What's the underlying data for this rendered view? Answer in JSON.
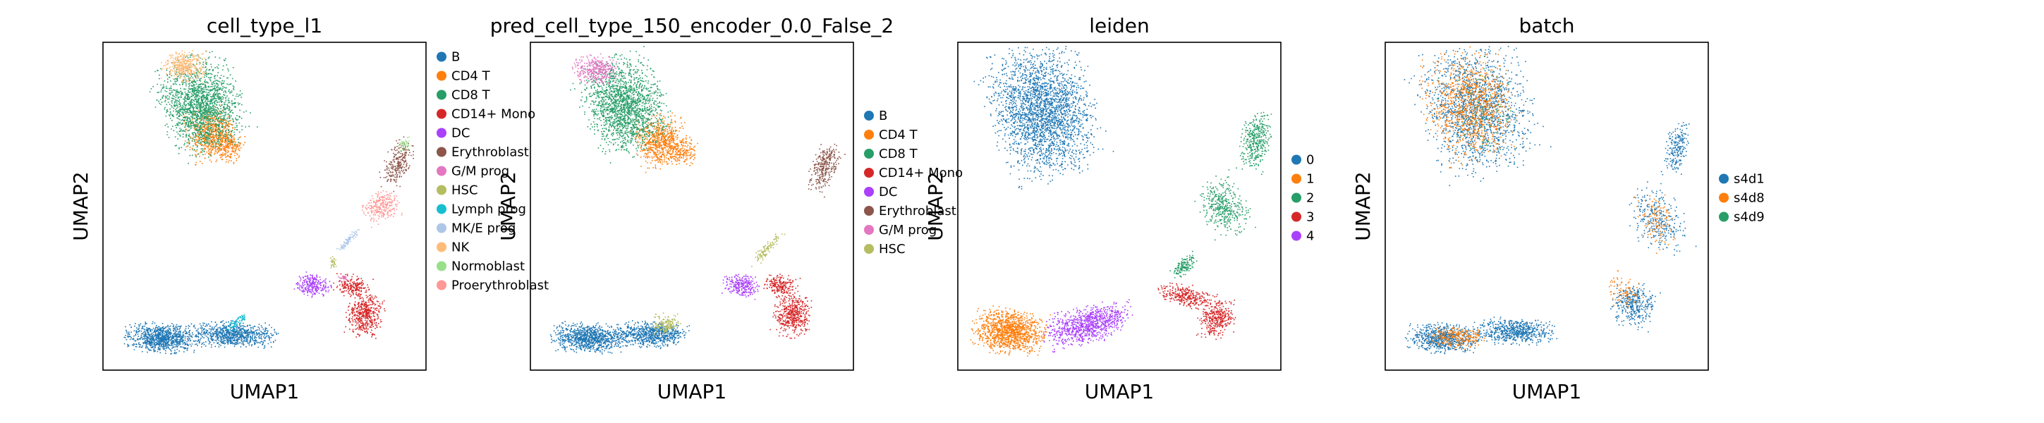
{
  "chart_data": [
    {
      "type": "scatter",
      "title": "cell_type_l1",
      "xlabel": "UMAP1",
      "ylabel": "UMAP2",
      "legend_position": "right",
      "series": [
        {
          "name": "B",
          "color": "#1f77b4",
          "regions": [
            [
              0.2,
              0.12,
              0.42,
              0.12,
              0.7,
              0.03
            ],
            [
              0.6,
              0.15,
              0.18,
              0.1,
              2.0,
              0.02
            ],
            [
              0.62,
              0.18,
              0.07,
              0.08,
              1.2,
              0.0
            ]
          ]
        },
        {
          "name": "CD4 T",
          "color": "#ff7f0e",
          "regions": [
            [
              1.5,
              0.1,
              0.25,
              0.25,
              1.0,
              -0.2
            ],
            [
              2.35,
              0.1,
              0.28,
              0.12,
              1.4,
              0.0
            ]
          ]
        },
        {
          "name": "CD8 T",
          "color": "#279e68",
          "regions": [
            [
              1.3,
              0.25,
              0.3,
              0.32,
              1.0,
              -0.3
            ]
          ]
        },
        {
          "name": "CD14+ Mono",
          "color": "#d62728",
          "regions": [
            [
              6.35,
              0.35,
              0.85,
              0.1,
              1.2,
              0.0
            ],
            [
              0.4,
              0.01,
              0.45,
              0.09,
              2.0,
              0.0
            ]
          ]
        },
        {
          "name": "DC",
          "color": "#aa40fc",
          "regions": [
            [
              5.9,
              0.37,
              0.65,
              0.14,
              0.8,
              0.2
            ]
          ]
        },
        {
          "name": "Erythroblast",
          "color": "#8c564b",
          "regions": [
            [
              4.7,
              0.6,
              0.25,
              0.12,
              1.2,
              0.8
            ]
          ]
        },
        {
          "name": "G/M prog",
          "color": "#e377c2",
          "regions": [
            [
              0.2,
              1.0,
              0.1,
              0.1,
              0.1,
              0.0
            ]
          ]
        },
        {
          "name": "HSC",
          "color": "#b5bd61",
          "regions": [
            [
              1.0,
              6.0,
              0.06,
              0.15,
              0.15,
              0.0
            ]
          ]
        },
        {
          "name": "Lymph prog",
          "color": "#17becf",
          "regions": [
            [
              1.5,
              2.5,
              0.05,
              0.12,
              0.3,
              0.0
            ]
          ]
        },
        {
          "name": "MK/E prog",
          "color": "#aec7e8",
          "regions": [
            [
              0.35,
              1.5,
              0.1,
              0.05,
              0.4,
              1.0
            ]
          ]
        },
        {
          "name": "NK",
          "color": "#ffbb78",
          "regions": [
            [
              1.8,
              0.5,
              0.2,
              0.12,
              0.6,
              0.0
            ]
          ]
        },
        {
          "name": "Normoblast",
          "color": "#98df8a",
          "regions": [
            [
              1.0,
              5.0,
              0.15,
              0.15,
              0.1,
              0.0
            ]
          ]
        },
        {
          "name": "Proerythroblast",
          "color": "#ff9896",
          "regions": [
            [
              0.5,
              3.0,
              0.28,
              0.55,
              1.0,
              0.0
            ]
          ]
        }
      ]
    },
    {
      "type": "scatter",
      "title": "pred_cell_type_150_encoder_0.0_False_2",
      "xlabel": "UMAP1",
      "ylabel": "UMAP2",
      "legend_position": "right",
      "series": [
        {
          "name": "B",
          "color": "#1f77b4",
          "regions": [
            [
              0.2,
              0.12,
              0.42,
              0.12,
              0.7,
              0.03
            ],
            [
              0.6,
              0.15,
              0.18,
              0.1,
              2.0,
              0.02
            ]
          ]
        },
        {
          "name": "CD4 T",
          "color": "#ff7f0e",
          "regions": [
            [
              1.5,
              0.1,
              0.25,
              0.25,
              1.0,
              -0.2
            ],
            [
              2.35,
              0.1,
              0.28,
              0.12,
              1.4,
              0.0
            ]
          ]
        },
        {
          "name": "CD8 T",
          "color": "#279e68",
          "regions": [
            [
              1.3,
              0.25,
              0.3,
              0.32,
              1.0,
              -0.3
            ]
          ]
        },
        {
          "name": "CD14+ Mono",
          "color": "#d62728",
          "regions": [
            [
              6.35,
              0.35,
              0.85,
              0.1,
              1.2,
              0.0
            ],
            [
              0.4,
              0.01,
              0.45,
              0.09,
              2.0,
              0.0
            ]
          ]
        },
        {
          "name": "DC",
          "color": "#aa40fc",
          "regions": [
            [
              5.9,
              0.37,
              0.65,
              0.14,
              0.8,
              0.2
            ]
          ]
        },
        {
          "name": "Erythroblast",
          "color": "#8c564b",
          "regions": [
            [
              4.7,
              0.6,
              0.25,
              0.12,
              1.2,
              0.8
            ]
          ]
        },
        {
          "name": "G/M prog",
          "color": "#e377c2",
          "regions": [
            [
              0.5,
              1.0,
              0.28,
              0.55,
              0.9,
              0.0
            ]
          ]
        },
        {
          "name": "HSC",
          "color": "#b5bd61",
          "regions": [
            [
              1.0,
              6.0,
              0.06,
              0.15,
              0.15,
              0.0
            ]
          ]
        }
      ]
    },
    {
      "type": "scatter",
      "title": "leiden",
      "xlabel": "UMAP1",
      "ylabel": "UMAP2",
      "legend_position": "right",
      "series": [
        {
          "name": "0",
          "color": "#1f77b4",
          "regions": [
            [
              2.2,
              0.1,
              0.35,
              0.35,
              0.7,
              -0.2
            ]
          ]
        },
        {
          "name": "1",
          "color": "#ff7f0e",
          "regions": [
            [
              0.1,
              0.08,
              0.38,
              0.1,
              0.1,
              0.0
            ]
          ]
        },
        {
          "name": "2",
          "color": "#279e68",
          "regions": [
            [
              2.0,
              0.5,
              0.65,
              0.5,
              0.6,
              0.6
            ]
          ]
        },
        {
          "name": "3",
          "color": "#d62728",
          "regions": [
            [
              6.0,
              0.35,
              0.25,
              0.12,
              0.7,
              0.0
            ]
          ]
        },
        {
          "name": "4",
          "color": "#aa40fc",
          "regions": [
            [
              0.35,
              0.1,
              0.2,
              0.2,
              0.8,
              0.3
            ]
          ]
        }
      ]
    },
    {
      "type": "scatter",
      "title": "batch",
      "xlabel": "UMAP1",
      "ylabel": "UMAP2",
      "legend_position": "right",
      "series": [
        {
          "name": "s4d1",
          "color": "#1f77b4",
          "regions": [
            [
              0.2,
              0.12,
              0.42,
              0.12,
              0.7,
              0.03
            ],
            [
              2.2,
              0.1,
              0.35,
              0.35,
              0.7,
              -0.2
            ],
            [
              0.6,
              0.15,
              0.18,
              0.1,
              2.0,
              0.02
            ]
          ]
        },
        {
          "name": "s4d8",
          "color": "#ff7f0e",
          "regions": [
            [
              1.3,
              0.25,
              0.3,
              0.32,
              1.0,
              -0.3
            ]
          ]
        },
        {
          "name": "s4d9",
          "color": "#279e68",
          "regions": [
            [
              4.7,
              0.6,
              0.25,
              0.12,
              1.2,
              0.8
            ]
          ]
        }
      ]
    }
  ]
}
